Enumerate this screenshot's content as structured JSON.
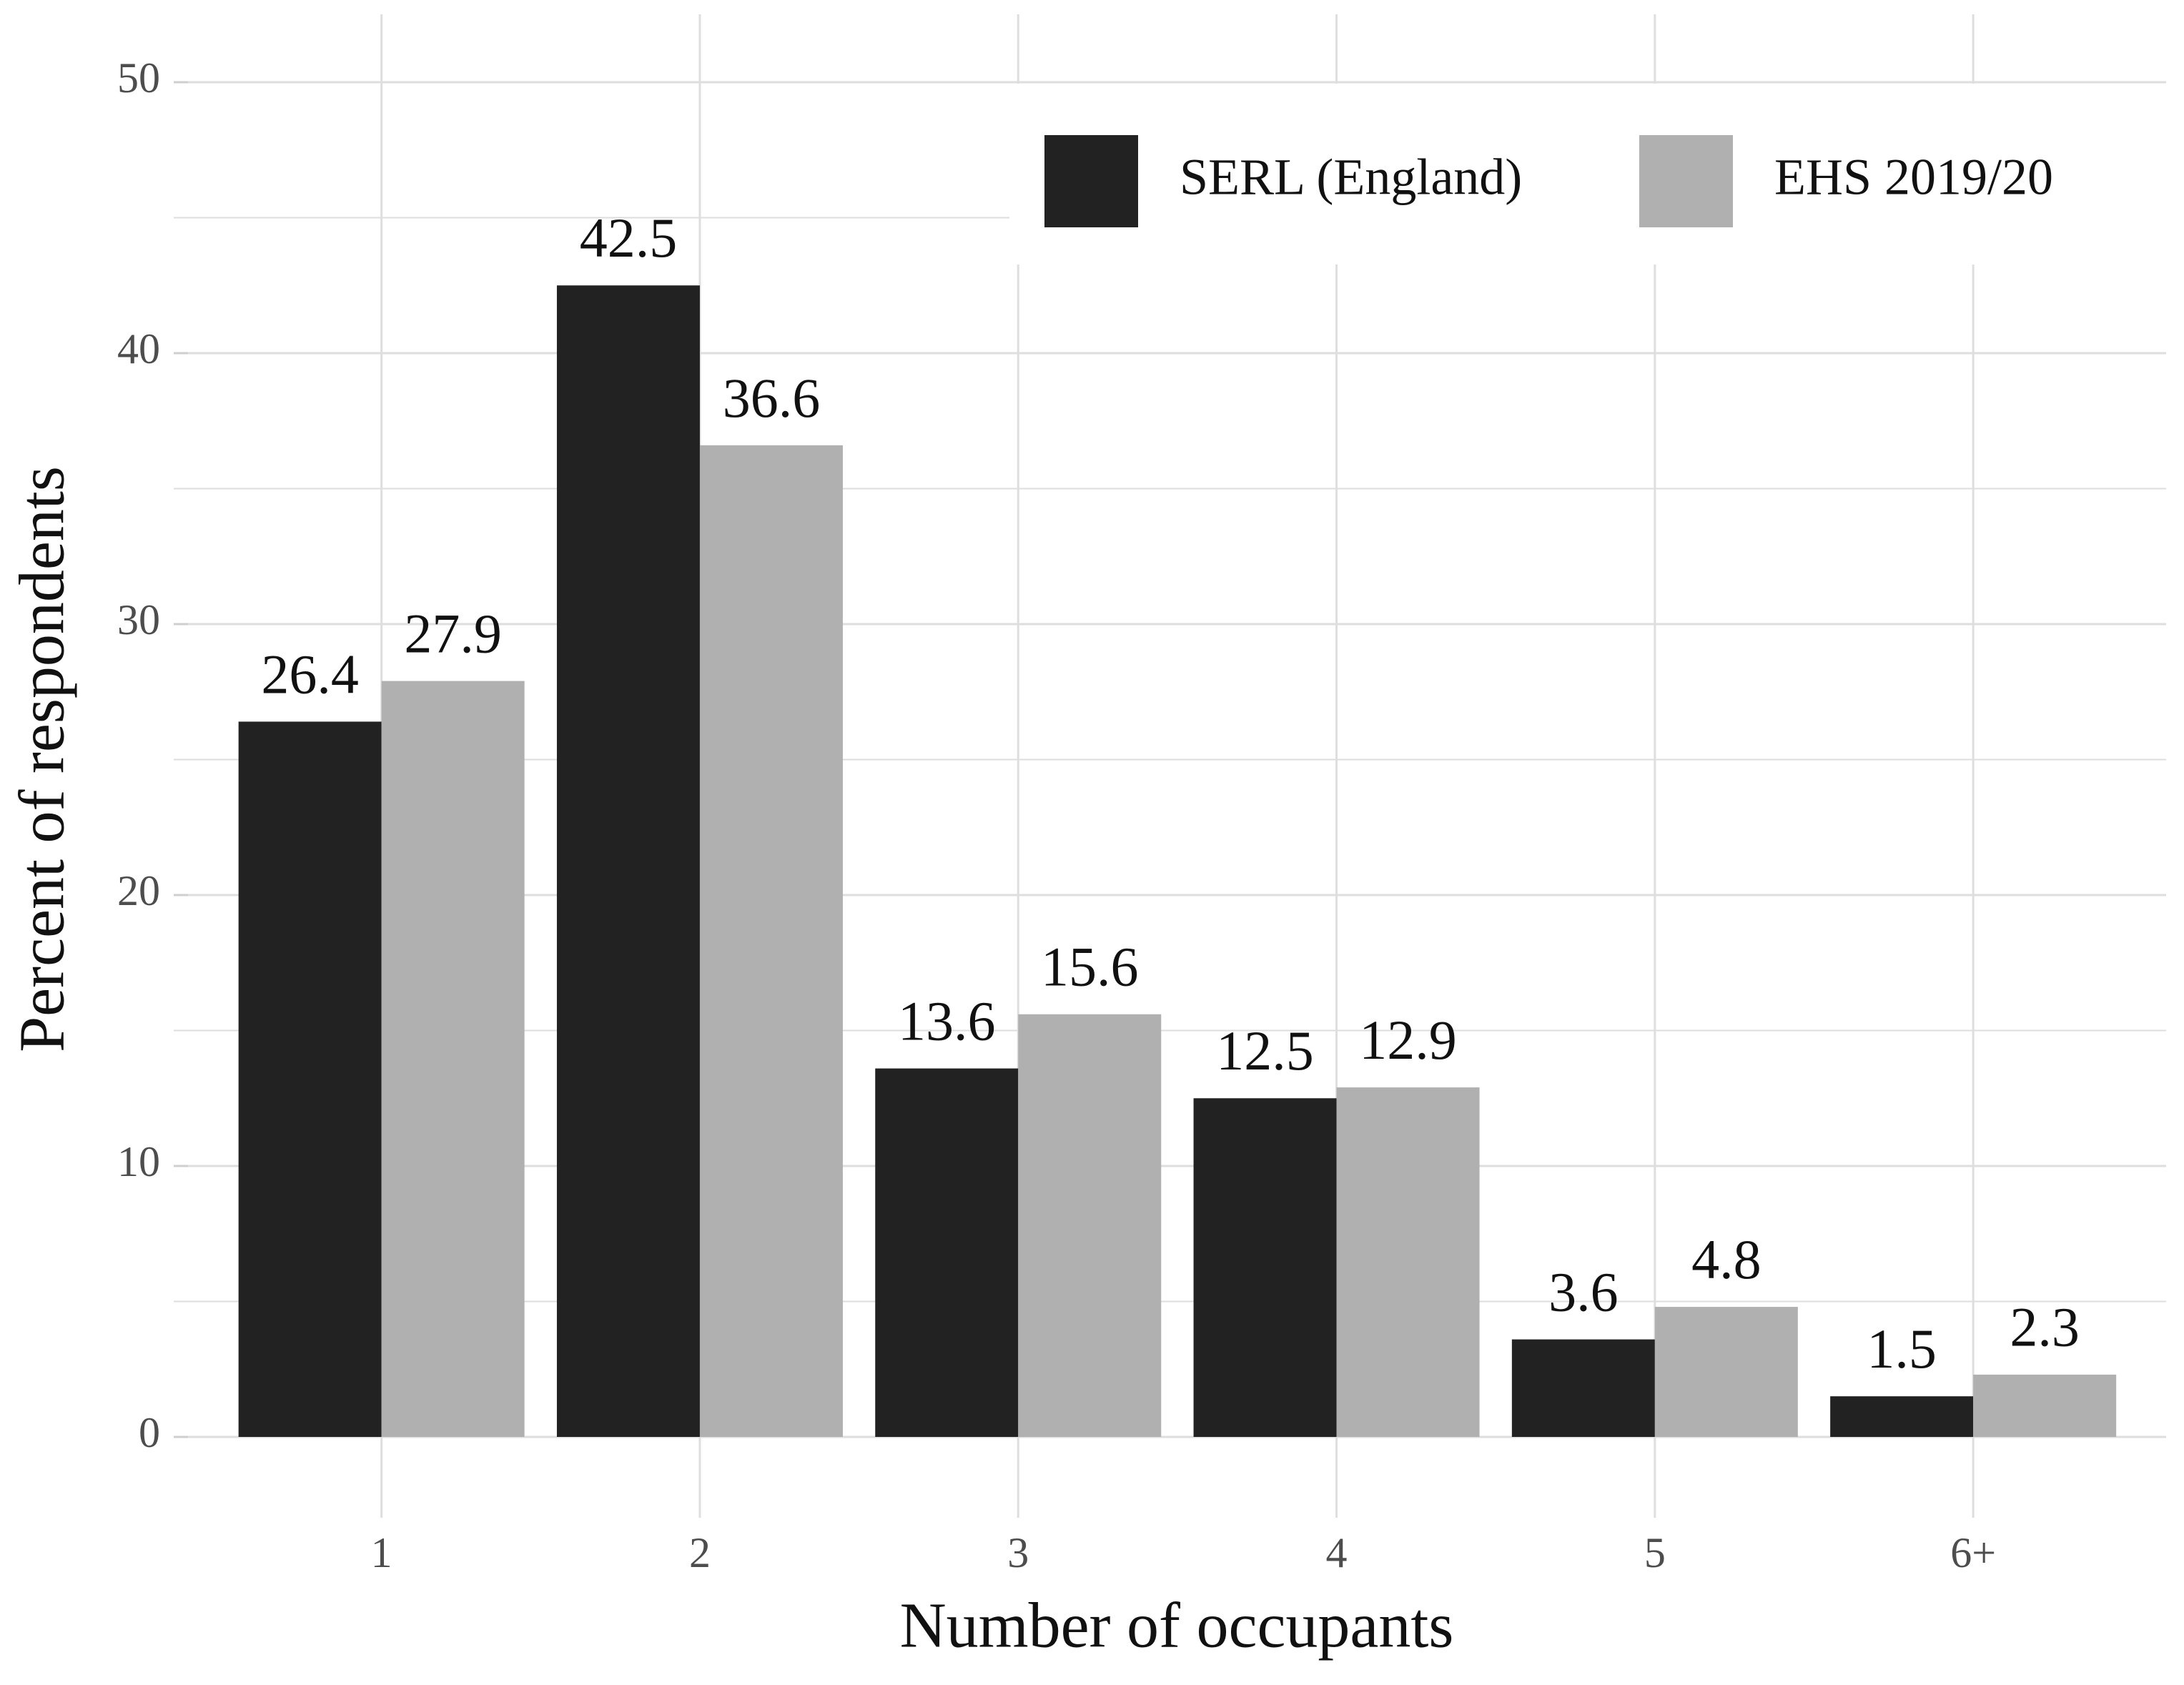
{
  "chart_data": {
    "type": "bar",
    "x_label": "Number of occupants",
    "y_label": "Percent of respondents",
    "categories": [
      "1",
      "2",
      "3",
      "4",
      "5",
      "6+"
    ],
    "series": [
      {
        "name": "SERL (England)",
        "color": "#222222",
        "values": [
          26.4,
          42.5,
          13.6,
          12.5,
          3.6,
          1.5
        ]
      },
      {
        "name": "EHS 2019/20",
        "color": "#b0b0b0",
        "values": [
          27.9,
          36.6,
          15.6,
          12.9,
          4.8,
          2.3
        ]
      }
    ],
    "ylim": [
      0,
      50
    ],
    "yticks": [
      0,
      10,
      20,
      30,
      40,
      50
    ],
    "grid": true,
    "legend": "top-right"
  }
}
